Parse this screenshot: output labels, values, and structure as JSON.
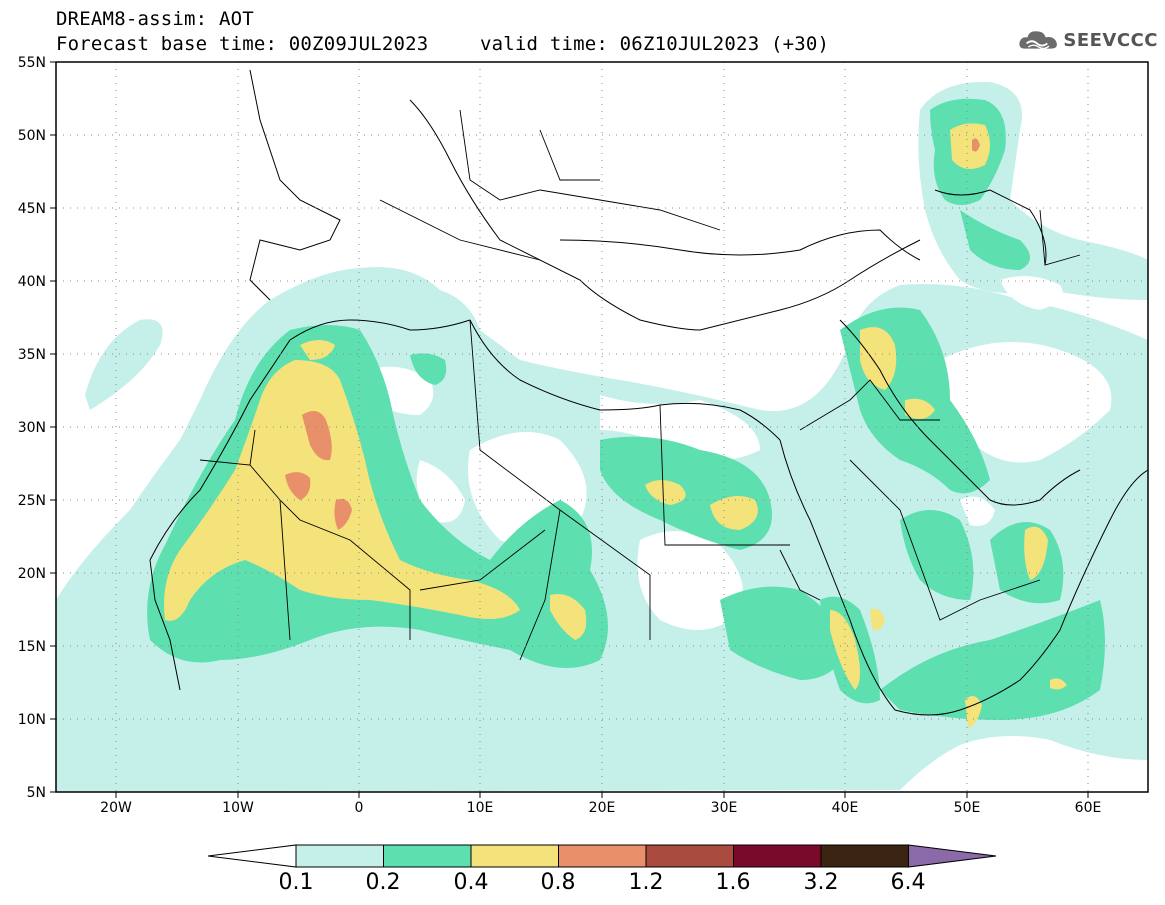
{
  "header": {
    "title_line1": "DREAM8-assim: AOT",
    "title_line2": "Forecast base time: 00Z09JUL2023",
    "title_line3": "valid time: 06Z10JUL2023 (+30)",
    "logo_text": "SEEVCCC",
    "logo_icon": "cloud-logo-icon"
  },
  "map": {
    "lat_labels": [
      "55N",
      "50N",
      "45N",
      "40N",
      "35N",
      "30N",
      "25N",
      "20N",
      "15N",
      "10N",
      "5N"
    ],
    "lon_labels": [
      "20W",
      "10W",
      "0",
      "10E",
      "20E",
      "30E",
      "40E",
      "50E",
      "60E"
    ]
  },
  "colorbar": {
    "labels": [
      "0.1",
      "0.2",
      "0.4",
      "0.8",
      "1.2",
      "1.6",
      "3.2",
      "6.4"
    ],
    "colors": [
      "#ffffff",
      "#c5f0ea",
      "#5ddfb0",
      "#f4e27a",
      "#e8906a",
      "#a94c3e",
      "#7a0a2a",
      "#3c2413",
      "#8a6aa8"
    ]
  },
  "colors": {
    "level_0_1": "#c5f0ea",
    "level_0_2": "#5ddfb0",
    "level_0_4": "#f4e27a",
    "level_0_8": "#e8906a"
  }
}
